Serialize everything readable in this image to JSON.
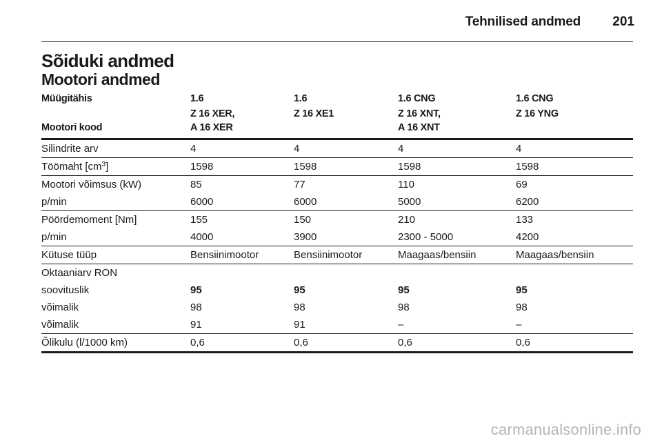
{
  "header": {
    "title": "Tehnilised andmed",
    "page_number": "201"
  },
  "section_title": "Sõiduki andmed",
  "subsection_title": "Mootori andmed",
  "table": {
    "row_model": [
      "Müügitähis",
      "1.6",
      "1.6",
      "1.6 CNG",
      "1.6 CNG"
    ],
    "row_code_label": "Mootori kood",
    "row_code": [
      [
        "Z 16 XER,",
        "A 16 XER"
      ],
      [
        "Z 16 XE1",
        ""
      ],
      [
        "Z 16 XNT,",
        "A 16 XNT"
      ],
      [
        "Z 16 YNG",
        ""
      ]
    ],
    "cylinders": [
      "Silindrite arv",
      "4",
      "4",
      "4",
      "4"
    ],
    "displacement": {
      "label": "Töömaht [cm",
      "unit_sup": "3",
      "label_end": "]",
      "values": [
        "1598",
        "1598",
        "1598",
        "1598"
      ]
    },
    "power": [
      "Mootori võimsus (kW)",
      "85",
      "77",
      "110",
      "69"
    ],
    "power_rpm": [
      "p/min",
      "6000",
      "6000",
      "5000",
      "6200"
    ],
    "torque": [
      "Pöördemoment [Nm]",
      "155",
      "150",
      "210",
      "133"
    ],
    "torque_rpm": [
      "p/min",
      "4000",
      "3900",
      "2300 - 5000",
      "4200"
    ],
    "fuel_type": [
      "Kütuse tüüp",
      "Bensiinimootor",
      "Bensiinimootor",
      "Maagaas/bensiin",
      "Maagaas/bensiin"
    ],
    "octane_label": "Oktaaniarv RON",
    "octane_recommended": [
      "soovituslik",
      "95",
      "95",
      "95",
      "95"
    ],
    "octane_possible_1": [
      "võimalik",
      "98",
      "98",
      "98",
      "98"
    ],
    "octane_possible_2": [
      "võimalik",
      "91",
      "91",
      "–",
      "–"
    ],
    "oil_consumption": [
      "Õlikulu (l/1000 km)",
      "0,6",
      "0,6",
      "0,6",
      "0,6"
    ]
  },
  "watermark": "carmanualsonline.info"
}
